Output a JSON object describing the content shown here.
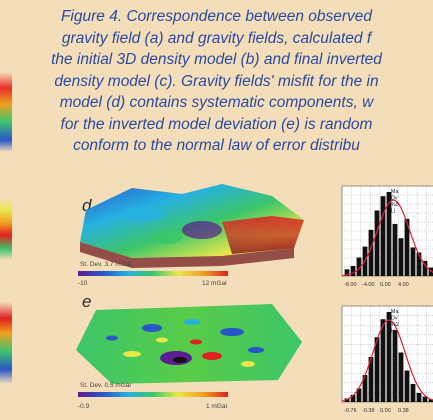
{
  "caption": {
    "lines": [
      "Figure 4. Correspondence between observed",
      "gravity field (a) and gravity fields, calculated f",
      "the initial 3D density model (b) and final inverted",
      "density model (c). Gravity fields' misfit for the in",
      "model (d) contains systematic components, w",
      "for the inverted model deviation (e) is random",
      "conform to the normal law of error distribu"
    ]
  },
  "panels": {
    "d": {
      "label": "d",
      "std_dev": "St. Dev. 3.7 mGal",
      "scale_min": "-10",
      "scale_max": "12 mGal",
      "hist_ticks": [
        "-8.00",
        "-4.00",
        "0.00",
        "4.00"
      ],
      "hist_legend": [
        "Ma",
        "Dv",
        "%5",
        "Li"
      ],
      "hist_bars": [
        0.08,
        0.12,
        0.22,
        0.35,
        0.55,
        0.78,
        0.95,
        1.0,
        0.62,
        0.45,
        0.68,
        0.34,
        0.28,
        0.18,
        0.1
      ]
    },
    "e": {
      "label": "e",
      "std_dev": "St. Dev. 0.5 mGal",
      "scale_min": "-0.9",
      "scale_max": "1 mGal",
      "hist_ticks": [
        "-0.76",
        "-0.38",
        "0.00",
        "0.38"
      ],
      "hist_legend": [
        "Ma",
        "Dv",
        "%2",
        "Li"
      ],
      "hist_bars": [
        0.04,
        0.08,
        0.15,
        0.3,
        0.5,
        0.72,
        0.92,
        1.0,
        0.8,
        0.55,
        0.35,
        0.2,
        0.1,
        0.06,
        0.03
      ]
    }
  },
  "colors": {
    "background": "#f4ddb9",
    "caption_text": "#2a4aa0",
    "normal_curve": "#e0203a",
    "bars": "#111111"
  }
}
